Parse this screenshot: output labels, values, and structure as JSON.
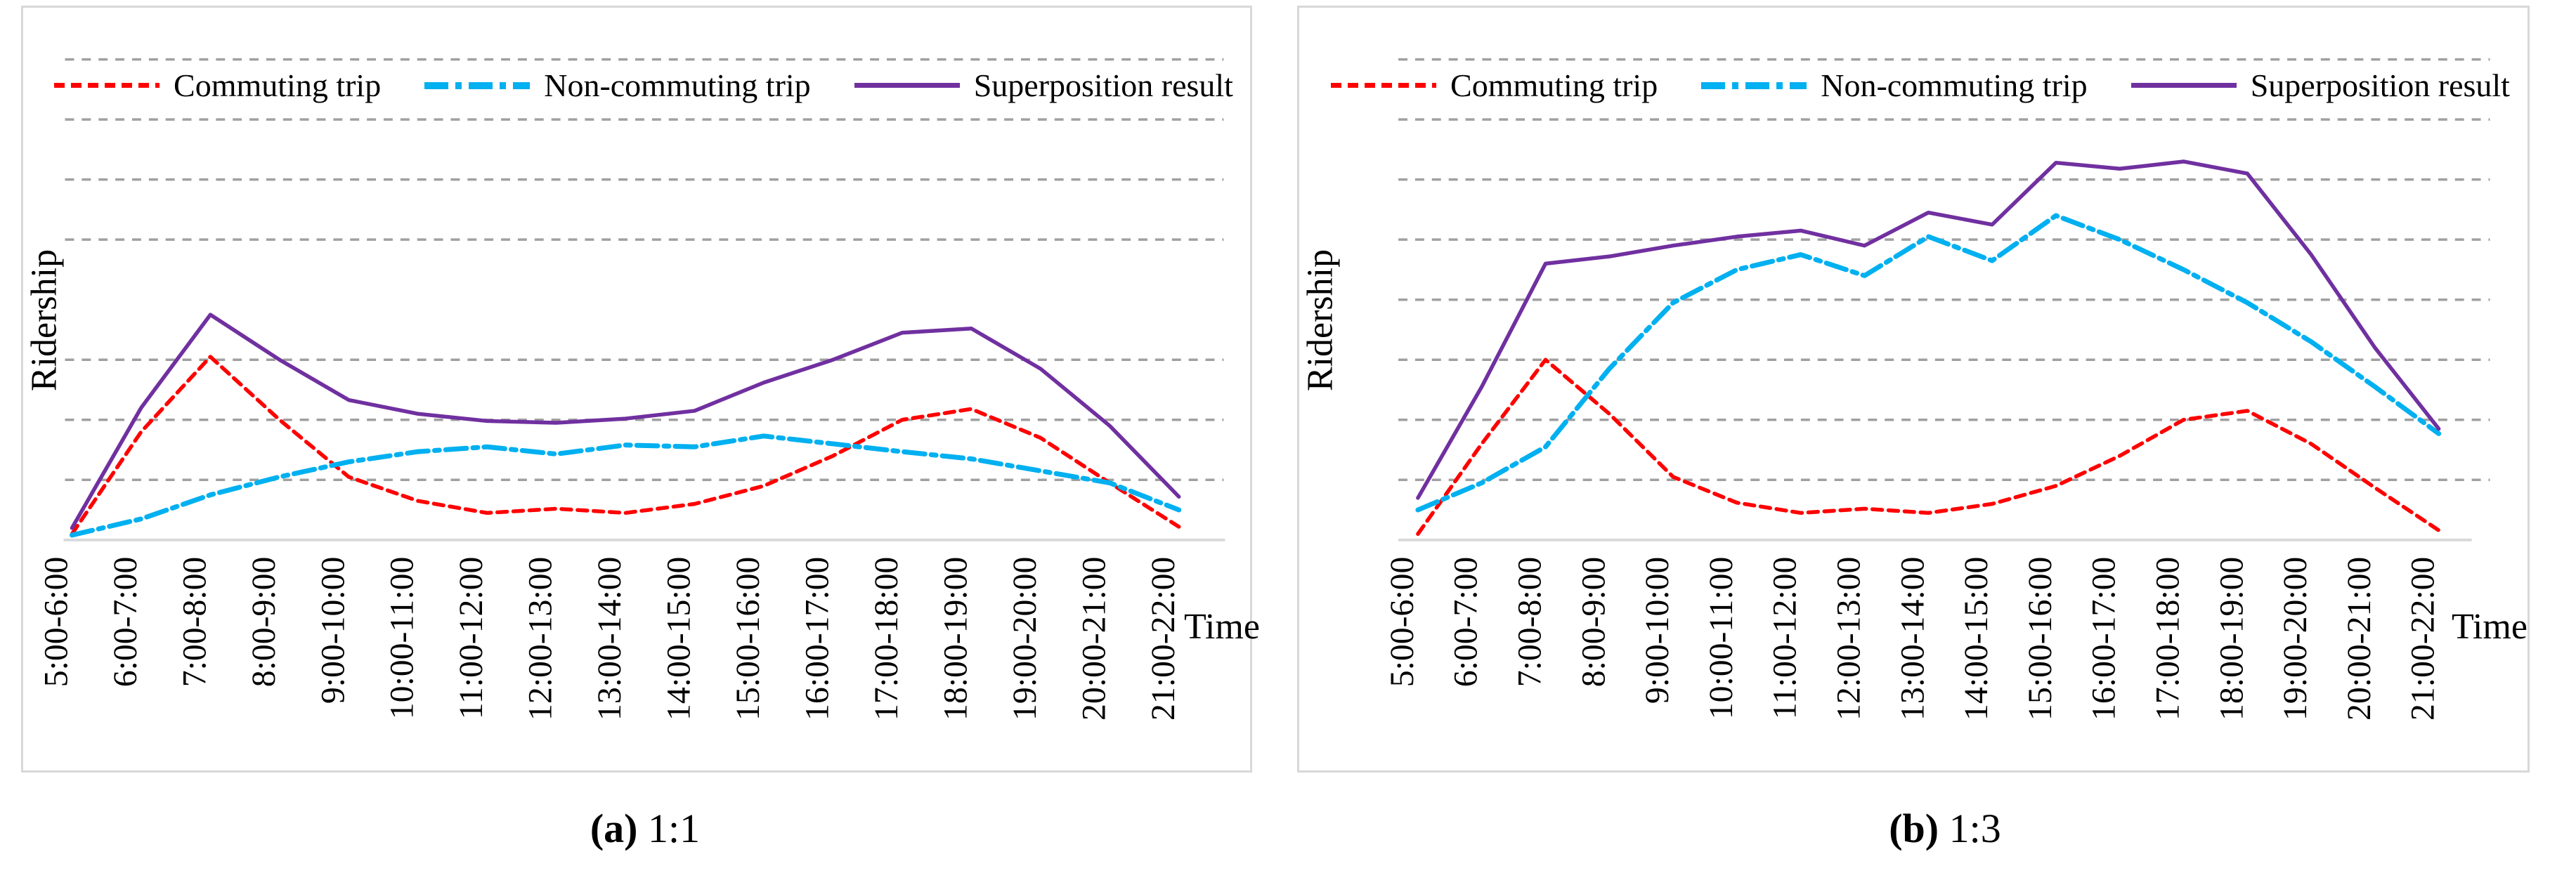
{
  "figure": {
    "y_axis_label": "Ridership",
    "x_axis_label": "Time",
    "legend": [
      {
        "name": "Commuting trip",
        "color": "#FF0000",
        "pattern": "dashed"
      },
      {
        "name": "Non-commuting trip",
        "color": "#00B0F0",
        "pattern": "dash-dot"
      },
      {
        "name": "Superposition result",
        "color": "#7030A0",
        "pattern": "solid"
      }
    ],
    "captions": {
      "a_marker": "(a)",
      "a_ratio": "1:1",
      "b_marker": "(b)",
      "b_ratio": "1:3"
    },
    "colors": {
      "gridline": "#a0a0a0",
      "axis_line": "#d9d9d9",
      "panel_border": "#d8d8d8"
    }
  },
  "chart_data": [
    {
      "id": "panel-a",
      "type": "line",
      "title": "(a) 1:1",
      "xlabel": "Time",
      "ylabel": "Ridership",
      "categories": [
        "5:00-6:00",
        "6:00-7:00",
        "7:00-8:00",
        "8:00-9:00",
        "9:00-10:00",
        "10:00-11:00",
        "11:00-12:00",
        "12:00-13:00",
        "13:00-14:00",
        "14:00-15:00",
        "15:00-16:00",
        "16:00-17:00",
        "17:00-18:00",
        "18:00-19:00",
        "19:00-20:00",
        "20:00-21:00",
        "21:00-22:00"
      ],
      "series": [
        {
          "name": "Commuting trip",
          "color": "#FF0000",
          "dash": "dashed",
          "values": [
            0.1,
            1.8,
            3.05,
            2.0,
            1.05,
            0.65,
            0.45,
            0.52,
            0.45,
            0.6,
            0.9,
            1.4,
            2.0,
            2.18,
            1.7,
            0.95,
            0.22
          ]
        },
        {
          "name": "Non-commuting trip",
          "color": "#00B0F0",
          "dash": "dash-dot",
          "values": [
            0.08,
            0.35,
            0.75,
            1.05,
            1.3,
            1.47,
            1.55,
            1.43,
            1.58,
            1.55,
            1.73,
            1.6,
            1.47,
            1.35,
            1.15,
            0.95,
            0.5
          ]
        },
        {
          "name": "Superposition result",
          "color": "#7030A0",
          "dash": "solid",
          "values": [
            0.2,
            2.2,
            3.75,
            3.0,
            2.33,
            2.1,
            1.98,
            1.95,
            2.02,
            2.15,
            2.62,
            3.0,
            3.45,
            3.52,
            2.85,
            1.9,
            0.72
          ]
        }
      ],
      "ylim": [
        0,
        8.3
      ],
      "y_tick_labels": "none shown (unlabeled ridership axis)",
      "y_unit": "relative gridline intervals",
      "grid": "horizontal dashed",
      "gridlines_at": [
        1,
        2,
        3,
        5,
        6,
        7,
        8
      ],
      "legend_position": "top inside plot"
    },
    {
      "id": "panel-b",
      "type": "line",
      "title": "(b) 1:3",
      "xlabel": "Time",
      "ylabel": "Ridership",
      "categories": [
        "5:00-6:00",
        "6:00-7:00",
        "7:00-8:00",
        "8:00-9:00",
        "9:00-10:00",
        "10:00-11:00",
        "11:00-12:00",
        "12:00-13:00",
        "13:00-14:00",
        "14:00-15:00",
        "15:00-16:00",
        "16:00-17:00",
        "17:00-18:00",
        "18:00-19:00",
        "19:00-20:00",
        "20:00-21:00",
        "21:00-22:00"
      ],
      "series": [
        {
          "name": "Commuting trip",
          "color": "#FF0000",
          "dash": "dashed",
          "values": [
            0.1,
            1.6,
            3.0,
            2.1,
            1.05,
            0.62,
            0.45,
            0.52,
            0.45,
            0.6,
            0.9,
            1.4,
            2.0,
            2.15,
            1.6,
            0.87,
            0.16
          ]
        },
        {
          "name": "Non-commuting trip",
          "color": "#00B0F0",
          "dash": "dash-dot",
          "values": [
            0.5,
            0.95,
            1.55,
            2.85,
            3.95,
            4.5,
            4.75,
            4.4,
            5.05,
            4.65,
            5.4,
            5.0,
            4.5,
            3.95,
            3.3,
            2.55,
            1.77
          ]
        },
        {
          "name": "Superposition result",
          "color": "#7030A0",
          "dash": "solid",
          "values": [
            0.7,
            2.55,
            4.6,
            4.72,
            4.9,
            5.05,
            5.15,
            4.9,
            5.45,
            5.25,
            6.28,
            6.18,
            6.3,
            6.1,
            4.75,
            3.2,
            1.85
          ]
        }
      ],
      "ylim": [
        0,
        8.3
      ],
      "y_tick_labels": "none shown (unlabeled ridership axis)",
      "y_unit": "relative gridline intervals",
      "grid": "horizontal dashed",
      "gridlines_at": [
        1,
        2,
        3,
        4,
        5,
        6,
        7,
        8
      ],
      "legend_position": "top inside plot"
    }
  ]
}
